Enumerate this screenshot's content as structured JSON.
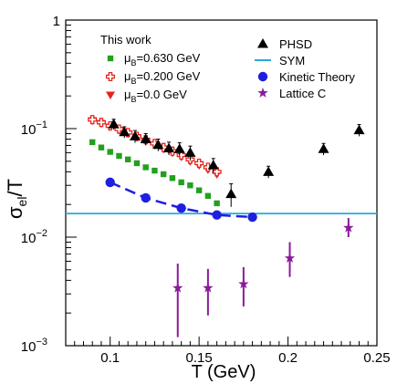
{
  "chart_data": {
    "type": "scatter",
    "xlabel": "T (GeV)",
    "ylabel": "σ_el/T",
    "xlim": [
      0.075,
      0.25
    ],
    "ylim": [
      0.001,
      1
    ],
    "yscale": "log",
    "grid": false,
    "x_ticks": [
      {
        "value": 0.1,
        "label": "0.1"
      },
      {
        "value": 0.15,
        "label": "0.15"
      },
      {
        "value": 0.2,
        "label": "0.2"
      },
      {
        "value": 0.25,
        "label": "0.25"
      }
    ],
    "y_ticks": [
      {
        "value": 1,
        "label": "1",
        "sup": ""
      },
      {
        "value": 0.1,
        "label": "10",
        "sup": "−1"
      },
      {
        "value": 0.01,
        "label": "10",
        "sup": "−2"
      },
      {
        "value": 0.001,
        "label": "10",
        "sup": "−3"
      }
    ],
    "legend_left": {
      "title": "This work",
      "items": [
        {
          "series": "muB_0630",
          "prefix": "μ",
          "sub": "B",
          "text": "=0.630 GeV"
        },
        {
          "series": "muB_0200",
          "prefix": "μ",
          "sub": "B",
          "text": "=0.200 GeV"
        },
        {
          "series": "muB_0",
          "prefix": "μ",
          "sub": "B",
          "text": "=0.0 GeV"
        }
      ]
    },
    "legend_right": {
      "items": [
        {
          "series": "phsd",
          "text": "PHSD"
        },
        {
          "series": "sym",
          "text": "SYM"
        },
        {
          "series": "kinetic",
          "text": "Kinetic Theory"
        },
        {
          "series": "lattice",
          "text": "Lattice C"
        }
      ]
    },
    "series": [
      {
        "id": "muB_0630",
        "name": "μB=0.630 GeV",
        "marker": "square",
        "color": "#22a01e",
        "points": [
          {
            "x": 0.09,
            "y": 0.075
          },
          {
            "x": 0.095,
            "y": 0.067
          },
          {
            "x": 0.1,
            "y": 0.061
          },
          {
            "x": 0.105,
            "y": 0.056
          },
          {
            "x": 0.11,
            "y": 0.052
          },
          {
            "x": 0.115,
            "y": 0.048
          },
          {
            "x": 0.12,
            "y": 0.044
          },
          {
            "x": 0.125,
            "y": 0.041
          },
          {
            "x": 0.13,
            "y": 0.038
          },
          {
            "x": 0.135,
            "y": 0.035
          },
          {
            "x": 0.14,
            "y": 0.032
          },
          {
            "x": 0.145,
            "y": 0.03
          },
          {
            "x": 0.15,
            "y": 0.027
          },
          {
            "x": 0.155,
            "y": 0.024
          },
          {
            "x": 0.16,
            "y": 0.0205
          }
        ]
      },
      {
        "id": "muB_0200",
        "name": "μB=0.200 GeV",
        "marker": "open-cross",
        "color": "#e4251d",
        "points": [
          {
            "x": 0.09,
            "y": 0.121
          },
          {
            "x": 0.095,
            "y": 0.114
          },
          {
            "x": 0.1,
            "y": 0.106
          },
          {
            "x": 0.105,
            "y": 0.099
          },
          {
            "x": 0.11,
            "y": 0.092
          },
          {
            "x": 0.115,
            "y": 0.085
          },
          {
            "x": 0.12,
            "y": 0.079
          },
          {
            "x": 0.125,
            "y": 0.073
          },
          {
            "x": 0.13,
            "y": 0.067
          },
          {
            "x": 0.135,
            "y": 0.062
          },
          {
            "x": 0.14,
            "y": 0.057
          },
          {
            "x": 0.145,
            "y": 0.052
          },
          {
            "x": 0.15,
            "y": 0.048
          },
          {
            "x": 0.155,
            "y": 0.044
          },
          {
            "x": 0.16,
            "y": 0.04
          }
        ]
      },
      {
        "id": "muB_0",
        "name": "μB=0.0 GeV",
        "marker": "triangle-down",
        "color": "#e4251d",
        "points": [
          {
            "x": 0.09,
            "y": 0.119
          },
          {
            "x": 0.095,
            "y": 0.112
          },
          {
            "x": 0.1,
            "y": 0.104
          },
          {
            "x": 0.105,
            "y": 0.097
          },
          {
            "x": 0.11,
            "y": 0.09
          },
          {
            "x": 0.115,
            "y": 0.083
          },
          {
            "x": 0.12,
            "y": 0.077
          },
          {
            "x": 0.125,
            "y": 0.071
          },
          {
            "x": 0.13,
            "y": 0.065
          },
          {
            "x": 0.135,
            "y": 0.06
          },
          {
            "x": 0.14,
            "y": 0.055
          },
          {
            "x": 0.145,
            "y": 0.05
          },
          {
            "x": 0.15,
            "y": 0.046
          },
          {
            "x": 0.155,
            "y": 0.042
          },
          {
            "x": 0.16,
            "y": 0.038
          }
        ]
      },
      {
        "id": "phsd",
        "name": "PHSD",
        "marker": "triangle-up",
        "color": "#000000",
        "points": [
          {
            "x": 0.102,
            "y": 0.11,
            "err": 0.012
          },
          {
            "x": 0.108,
            "y": 0.093,
            "err": 0.011
          },
          {
            "x": 0.114,
            "y": 0.085,
            "err": 0.011
          },
          {
            "x": 0.12,
            "y": 0.08,
            "err": 0.01
          },
          {
            "x": 0.127,
            "y": 0.071,
            "err": 0.009
          },
          {
            "x": 0.133,
            "y": 0.066,
            "err": 0.009
          },
          {
            "x": 0.139,
            "y": 0.065,
            "err": 0.009
          },
          {
            "x": 0.145,
            "y": 0.06,
            "err": 0.009
          },
          {
            "x": 0.158,
            "y": 0.046,
            "err": 0.007
          },
          {
            "x": 0.168,
            "y": 0.025,
            "err": 0.006
          },
          {
            "x": 0.189,
            "y": 0.04,
            "err": 0.005
          },
          {
            "x": 0.22,
            "y": 0.065,
            "err": 0.008
          },
          {
            "x": 0.24,
            "y": 0.097,
            "err": 0.012
          }
        ]
      },
      {
        "id": "kinetic",
        "name": "Kinetic Theory",
        "marker": "circle",
        "color": "#1f1fe0",
        "line": "dashed",
        "points": [
          {
            "x": 0.1,
            "y": 0.032
          },
          {
            "x": 0.12,
            "y": 0.023
          },
          {
            "x": 0.14,
            "y": 0.0185
          },
          {
            "x": 0.16,
            "y": 0.016
          },
          {
            "x": 0.18,
            "y": 0.0153
          }
        ]
      },
      {
        "id": "sym",
        "name": "SYM",
        "marker": "hline",
        "color": "#27a9e1",
        "value": 0.0165
      },
      {
        "id": "lattice",
        "name": "Lattice C",
        "marker": "star",
        "color": "#8b1a9a",
        "points": [
          {
            "x": 0.138,
            "y": 0.0034,
            "lo": 0.0012,
            "hi": 0.0057
          },
          {
            "x": 0.155,
            "y": 0.0034,
            "lo": 0.0019,
            "hi": 0.0051
          },
          {
            "x": 0.175,
            "y": 0.0037,
            "lo": 0.0023,
            "hi": 0.0053
          },
          {
            "x": 0.201,
            "y": 0.0064,
            "lo": 0.0043,
            "hi": 0.009
          },
          {
            "x": 0.234,
            "y": 0.0122,
            "lo": 0.01,
            "hi": 0.015
          }
        ]
      }
    ]
  }
}
